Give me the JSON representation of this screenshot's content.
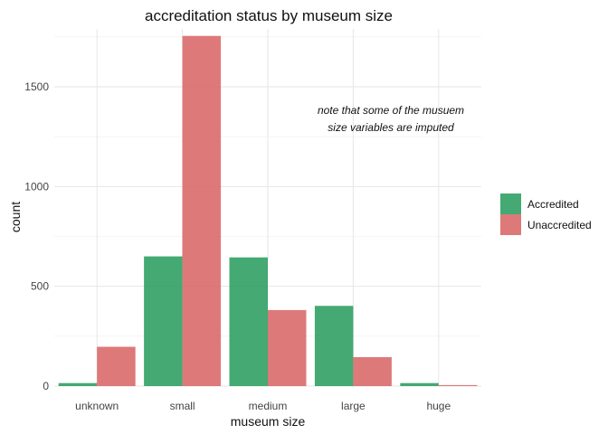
{
  "chart_data": {
    "type": "bar",
    "title": "accreditation status by museum size",
    "xlabel": "museum size",
    "ylabel": "count",
    "categories": [
      "unknown",
      "small",
      "medium",
      "large",
      "huge"
    ],
    "series": [
      {
        "name": "Accredited",
        "color": "#2a9d60",
        "values": [
          15,
          650,
          645,
          402,
          15
        ]
      },
      {
        "name": "Unaccredited",
        "color": "#d96666",
        "values": [
          197,
          1755,
          381,
          145,
          5
        ]
      }
    ],
    "ylim": [
      0,
      1790
    ],
    "yticks": [
      0,
      500,
      1000,
      1500
    ],
    "grid": true,
    "legend_position": "right",
    "annotation": {
      "line1": "note that some of the musuem",
      "line2": "size variables are imputed"
    }
  }
}
